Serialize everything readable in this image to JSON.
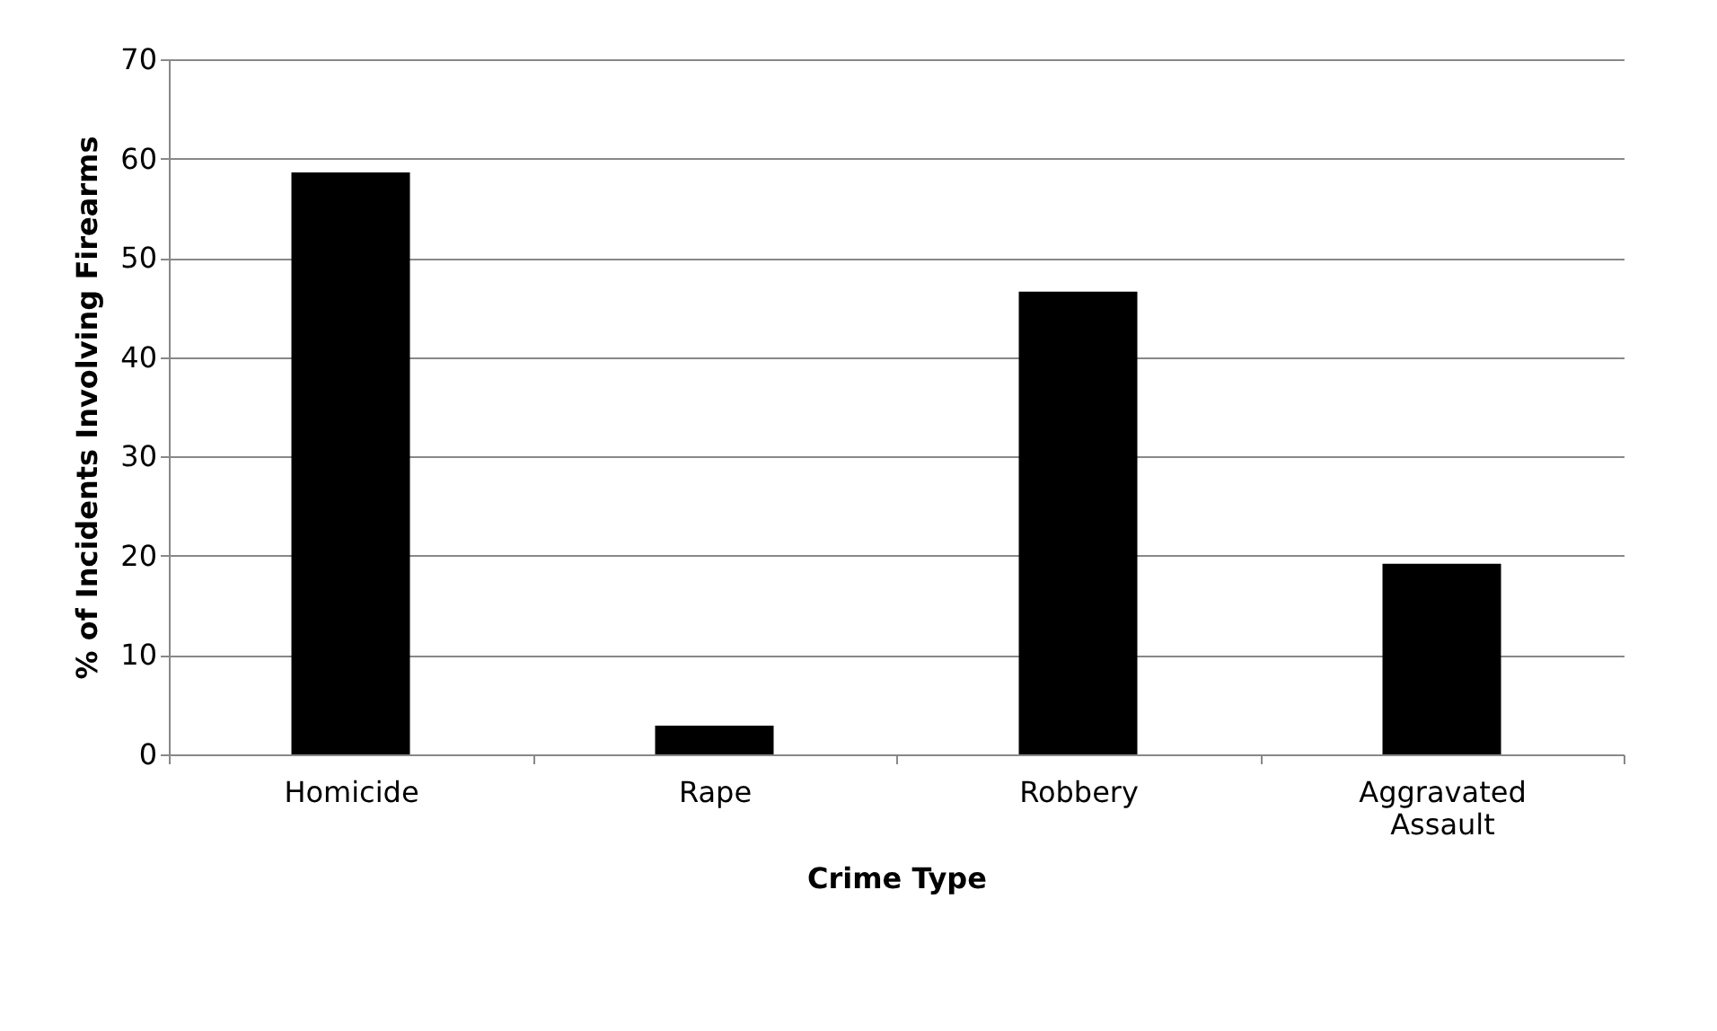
{
  "chart_data": {
    "type": "bar",
    "xlabel": "Crime Type",
    "ylabel": "% of Incidents Involving Firearms",
    "categories": [
      "Homicide",
      "Rape",
      "Robbery",
      "Aggravated Assault"
    ],
    "values": [
      58.6,
      2.9,
      46.6,
      19.2
    ],
    "color": "#000000",
    "ylim": [
      0,
      70
    ],
    "yticks": [
      0,
      10,
      20,
      30,
      40,
      50,
      60,
      70
    ],
    "grid": "y"
  }
}
